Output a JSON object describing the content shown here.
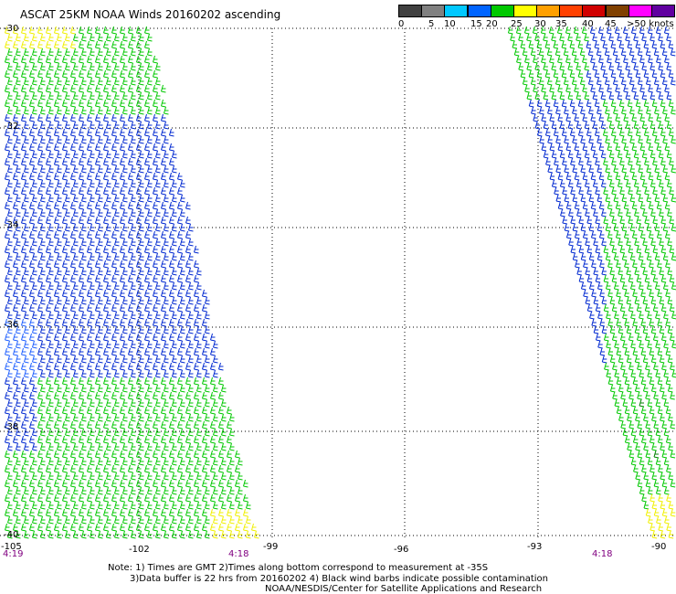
{
  "title": "ASCAT 25KM NOAA Winds 20160202 ascending",
  "legend": {
    "labels": [
      "0",
      "5",
      "10",
      "15",
      "20",
      "25",
      "30",
      "35",
      "40",
      "45",
      ">50 knots"
    ],
    "colors": [
      "#404040",
      "#808080",
      "#00c8ff",
      "#0064ff",
      "#00c800",
      "#ffff00",
      "#ffa000",
      "#ff4000",
      "#d00000",
      "#804000",
      "#ff00ff",
      "#6000a0"
    ]
  },
  "axes": {
    "lat_labels": [
      "-30",
      "-32",
      "-34",
      "-36",
      "-38",
      "-40"
    ],
    "lon_labels": [
      "-105",
      "-102",
      "-99",
      "-96",
      "-93",
      "-90"
    ]
  },
  "times": [
    "4:19",
    "4:18",
    "4:18"
  ],
  "notes": [
    "Note: 1) Times are GMT 2)Times along bottom correspond to measurement at -35S",
    "3)Data buffer is 22 hrs from 20160202 4) Black wind barbs indicate possible contamination",
    "NOAA/NESDIS/Center for Satellite Applications and Research"
  ]
}
